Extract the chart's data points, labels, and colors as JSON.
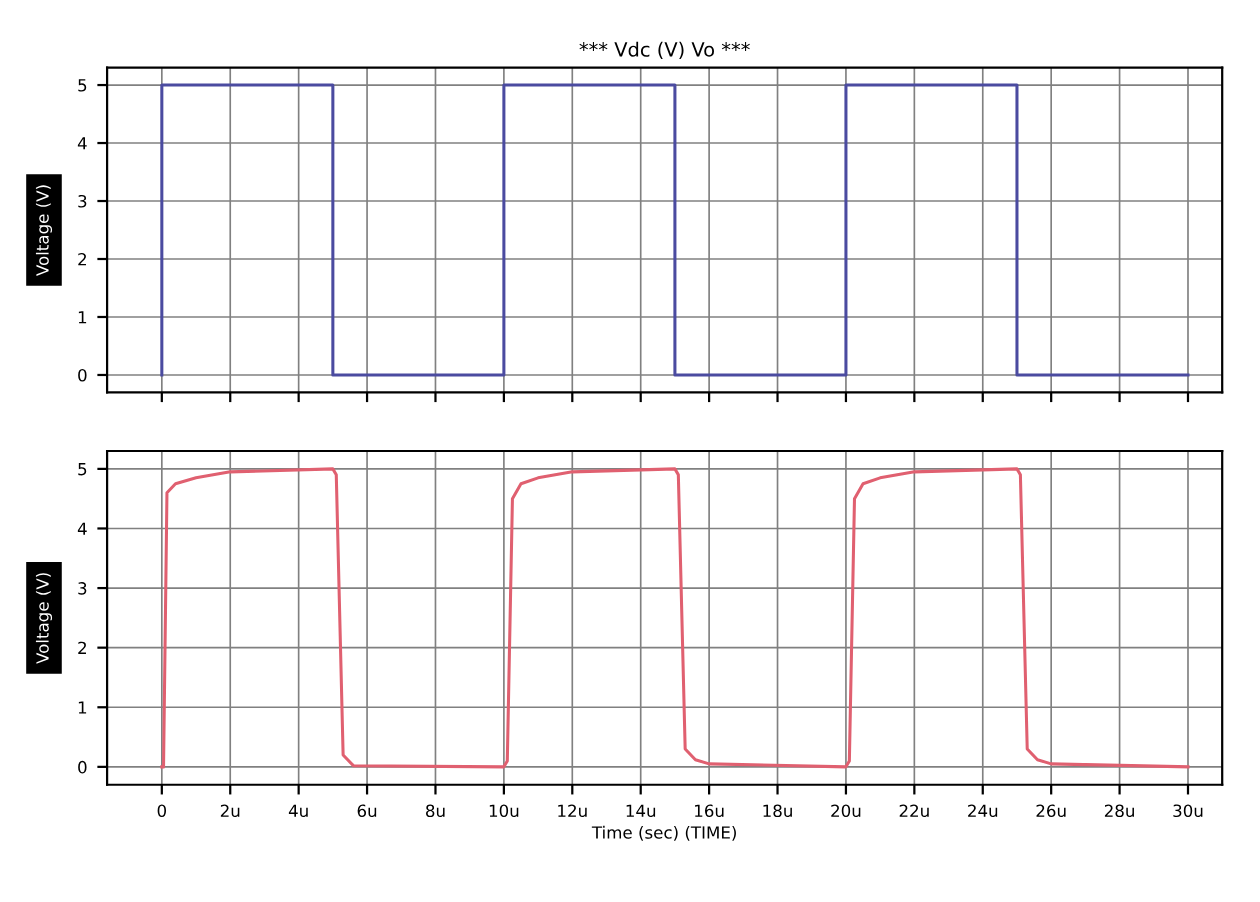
{
  "chart_data": [
    {
      "type": "line",
      "title": "*** Vdc (V) Vo ***",
      "ylabel": "Voltage (V)",
      "xlim": [
        -1.6,
        31
      ],
      "ylim": [
        -0.3,
        5.3
      ],
      "yticks": [
        0,
        1,
        2,
        3,
        4,
        5
      ],
      "xticks": [
        {
          "value": 0,
          "label": null
        },
        {
          "value": 2,
          "label": null
        },
        {
          "value": 4,
          "label": null
        },
        {
          "value": 6,
          "label": null
        },
        {
          "value": 8,
          "label": null
        },
        {
          "value": 10,
          "label": null
        },
        {
          "value": 12,
          "label": null
        },
        {
          "value": 14,
          "label": null
        },
        {
          "value": 16,
          "label": null
        },
        {
          "value": 18,
          "label": null
        },
        {
          "value": 20,
          "label": null
        },
        {
          "value": 22,
          "label": null
        },
        {
          "value": 24,
          "label": null
        },
        {
          "value": 26,
          "label": null
        },
        {
          "value": 28,
          "label": null
        },
        {
          "value": 30,
          "label": null
        }
      ],
      "tick_labels": "y",
      "grid": true,
      "series": [
        {
          "color": "#4b4ba0",
          "x": [
            0,
            0,
            5,
            5,
            10,
            10,
            15,
            15,
            20,
            20,
            25,
            25,
            30
          ],
          "values": [
            0,
            5,
            5,
            0,
            0,
            5,
            5,
            0,
            0,
            5,
            5,
            0,
            0
          ]
        }
      ]
    },
    {
      "type": "line",
      "ylabel": "Voltage (V)",
      "xlabel": "Time (sec) (TIME)",
      "xlim": [
        -1.6,
        31
      ],
      "ylim": [
        -0.3,
        5.3
      ],
      "yticks": [
        0,
        1,
        2,
        3,
        4,
        5
      ],
      "xticks": [
        {
          "value": 0,
          "label": "0"
        },
        {
          "value": 2,
          "label": "2u"
        },
        {
          "value": 4,
          "label": "4u"
        },
        {
          "value": 6,
          "label": "6u"
        },
        {
          "value": 8,
          "label": "8u"
        },
        {
          "value": 10,
          "label": "10u"
        },
        {
          "value": 12,
          "label": "12u"
        },
        {
          "value": 14,
          "label": "14u"
        },
        {
          "value": 16,
          "label": "16u"
        },
        {
          "value": 18,
          "label": "18u"
        },
        {
          "value": 20,
          "label": "20u"
        },
        {
          "value": 22,
          "label": "22u"
        },
        {
          "value": 24,
          "label": "24u"
        },
        {
          "value": 26,
          "label": "26u"
        },
        {
          "value": 28,
          "label": "28u"
        },
        {
          "value": 30,
          "label": "30u"
        }
      ],
      "grid": true,
      "series": [
        {
          "color": "#e06070",
          "x": [
            0,
            0.05,
            0.15,
            0.4,
            1,
            2,
            5,
            5.1,
            5.3,
            5.6,
            10,
            10.1,
            10.25,
            10.5,
            11,
            12,
            15,
            15.1,
            15.3,
            15.6,
            16,
            20,
            20.1,
            20.25,
            20.5,
            21,
            22,
            25,
            25.1,
            25.3,
            25.6,
            26,
            30
          ],
          "values": [
            0,
            0,
            4.6,
            4.75,
            4.85,
            4.95,
            5,
            4.9,
            0.2,
            0.02,
            0,
            0.1,
            4.5,
            4.75,
            4.85,
            4.95,
            5,
            4.9,
            0.3,
            0.12,
            0.05,
            0,
            0.1,
            4.5,
            4.75,
            4.85,
            4.95,
            5,
            4.9,
            0.3,
            0.12,
            0.05,
            0
          ]
        }
      ]
    }
  ]
}
